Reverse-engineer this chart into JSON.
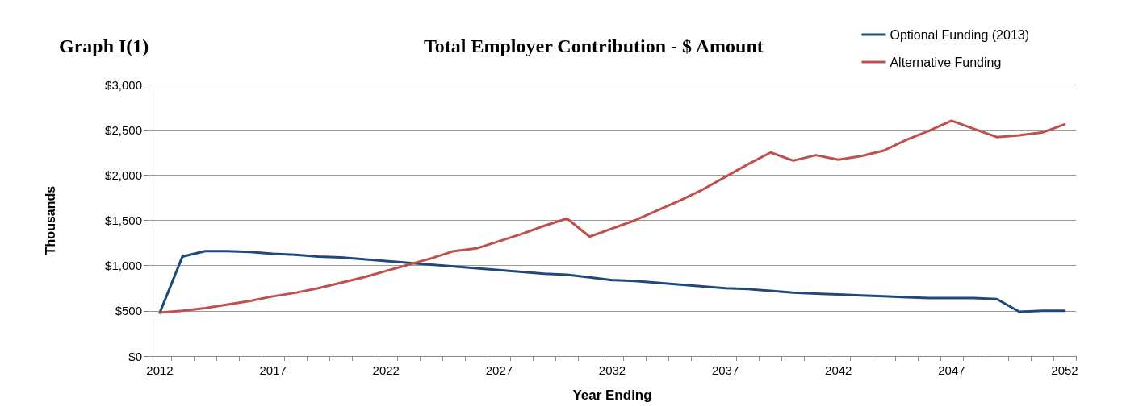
{
  "chart_data": {
    "type": "line",
    "title": "Total Employer Contribution - $ Amount",
    "subtitle": "Graph I(1)",
    "xlabel": "Year Ending",
    "ylabel": "Thousands",
    "categories": [
      "2012",
      null,
      null,
      null,
      null,
      "2017",
      null,
      null,
      null,
      null,
      "2022",
      null,
      null,
      null,
      null,
      "2027",
      null,
      null,
      null,
      null,
      "2032",
      null,
      null,
      null,
      null,
      "2037",
      null,
      null,
      null,
      null,
      "2042",
      null,
      null,
      null,
      null,
      "2047",
      null,
      null,
      null,
      null,
      "2052"
    ],
    "series": [
      {
        "name": "Optional Funding (2013)",
        "color": "#1f497d",
        "values": [
          480,
          1100,
          1160,
          1160,
          1150,
          1130,
          1120,
          1100,
          1090,
          1070,
          1050,
          1030,
          1010,
          990,
          970,
          950,
          930,
          910,
          900,
          870,
          840,
          830,
          810,
          790,
          770,
          750,
          740,
          720,
          700,
          690,
          680,
          670,
          660,
          650,
          640,
          640,
          640,
          630,
          490,
          500,
          500
        ]
      },
      {
        "name": "Alternative Funding",
        "color": "#c0504d",
        "values": [
          480,
          500,
          530,
          570,
          610,
          660,
          700,
          750,
          810,
          870,
          940,
          1010,
          1080,
          1160,
          1190,
          1270,
          1350,
          1440,
          1520,
          1320,
          1410,
          1500,
          1610,
          1720,
          1840,
          1980,
          2120,
          2250,
          2160,
          2220,
          2170,
          2210,
          2270,
          2390,
          2490,
          2600,
          2510,
          2420,
          2440,
          2470,
          2560
        ]
      }
    ],
    "ylim": [
      0,
      3000
    ],
    "yticks": [
      {
        "value": 0,
        "label": "$0"
      },
      {
        "value": 500,
        "label": "$500"
      },
      {
        "value": 1000,
        "label": "$1,000"
      },
      {
        "value": 1500,
        "label": "$1,500"
      },
      {
        "value": 2000,
        "label": "$2,000"
      },
      {
        "value": 2500,
        "label": "$2,500"
      },
      {
        "value": 3000,
        "label": "$3,000"
      }
    ],
    "grid": "y",
    "legend": "top right",
    "marker": "none"
  }
}
